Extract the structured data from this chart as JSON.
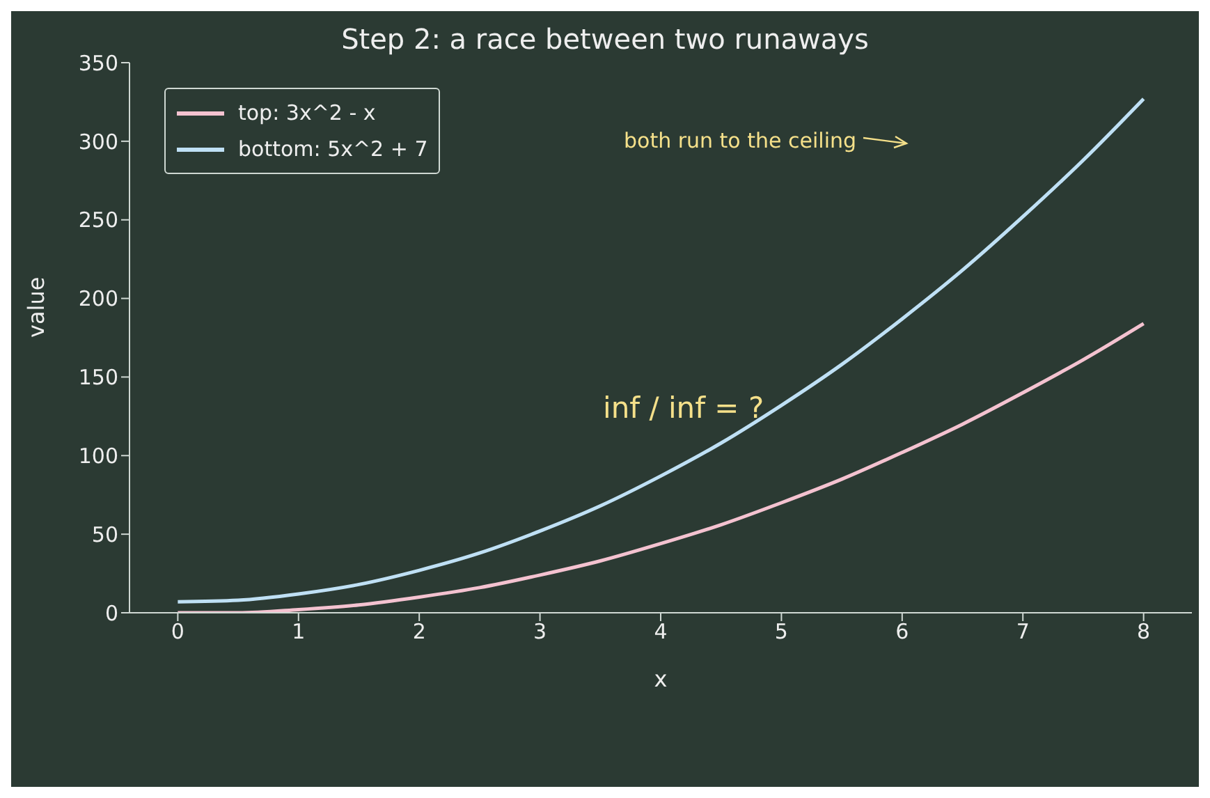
{
  "chart_data": {
    "type": "line",
    "title": "Step 2: a race between two runaways",
    "xlabel": "x",
    "ylabel": "value",
    "x": [
      0,
      0.5,
      1,
      1.5,
      2,
      2.5,
      3,
      3.5,
      4,
      4.5,
      5,
      5.5,
      6,
      6.5,
      7,
      7.5,
      8
    ],
    "series": [
      {
        "name": "top: 3x^2 - x",
        "color": "#f4c2d0",
        "values": [
          0,
          0,
          2,
          5,
          10,
          16,
          24,
          33,
          44,
          56,
          70,
          85,
          102,
          120,
          140,
          161,
          184
        ]
      },
      {
        "name": "bottom: 5x^2 + 7",
        "color": "#bfe0f5",
        "values": [
          7,
          8,
          12,
          18,
          27,
          38,
          52,
          68,
          87,
          108,
          132,
          158,
          187,
          218,
          252,
          288,
          327
        ]
      }
    ],
    "xlim": [
      -0.4,
      8.4
    ],
    "xticks": [
      0,
      1,
      2,
      3,
      4,
      5,
      6,
      7,
      8
    ],
    "ylim": [
      0,
      350
    ],
    "yticks": [
      0,
      50,
      100,
      150,
      200,
      250,
      300,
      350
    ],
    "annotations": [
      "both run to the ceiling",
      "inf / inf = ?"
    ],
    "legend": "top left",
    "grid": false,
    "marker": "none",
    "line_style": "solid"
  }
}
